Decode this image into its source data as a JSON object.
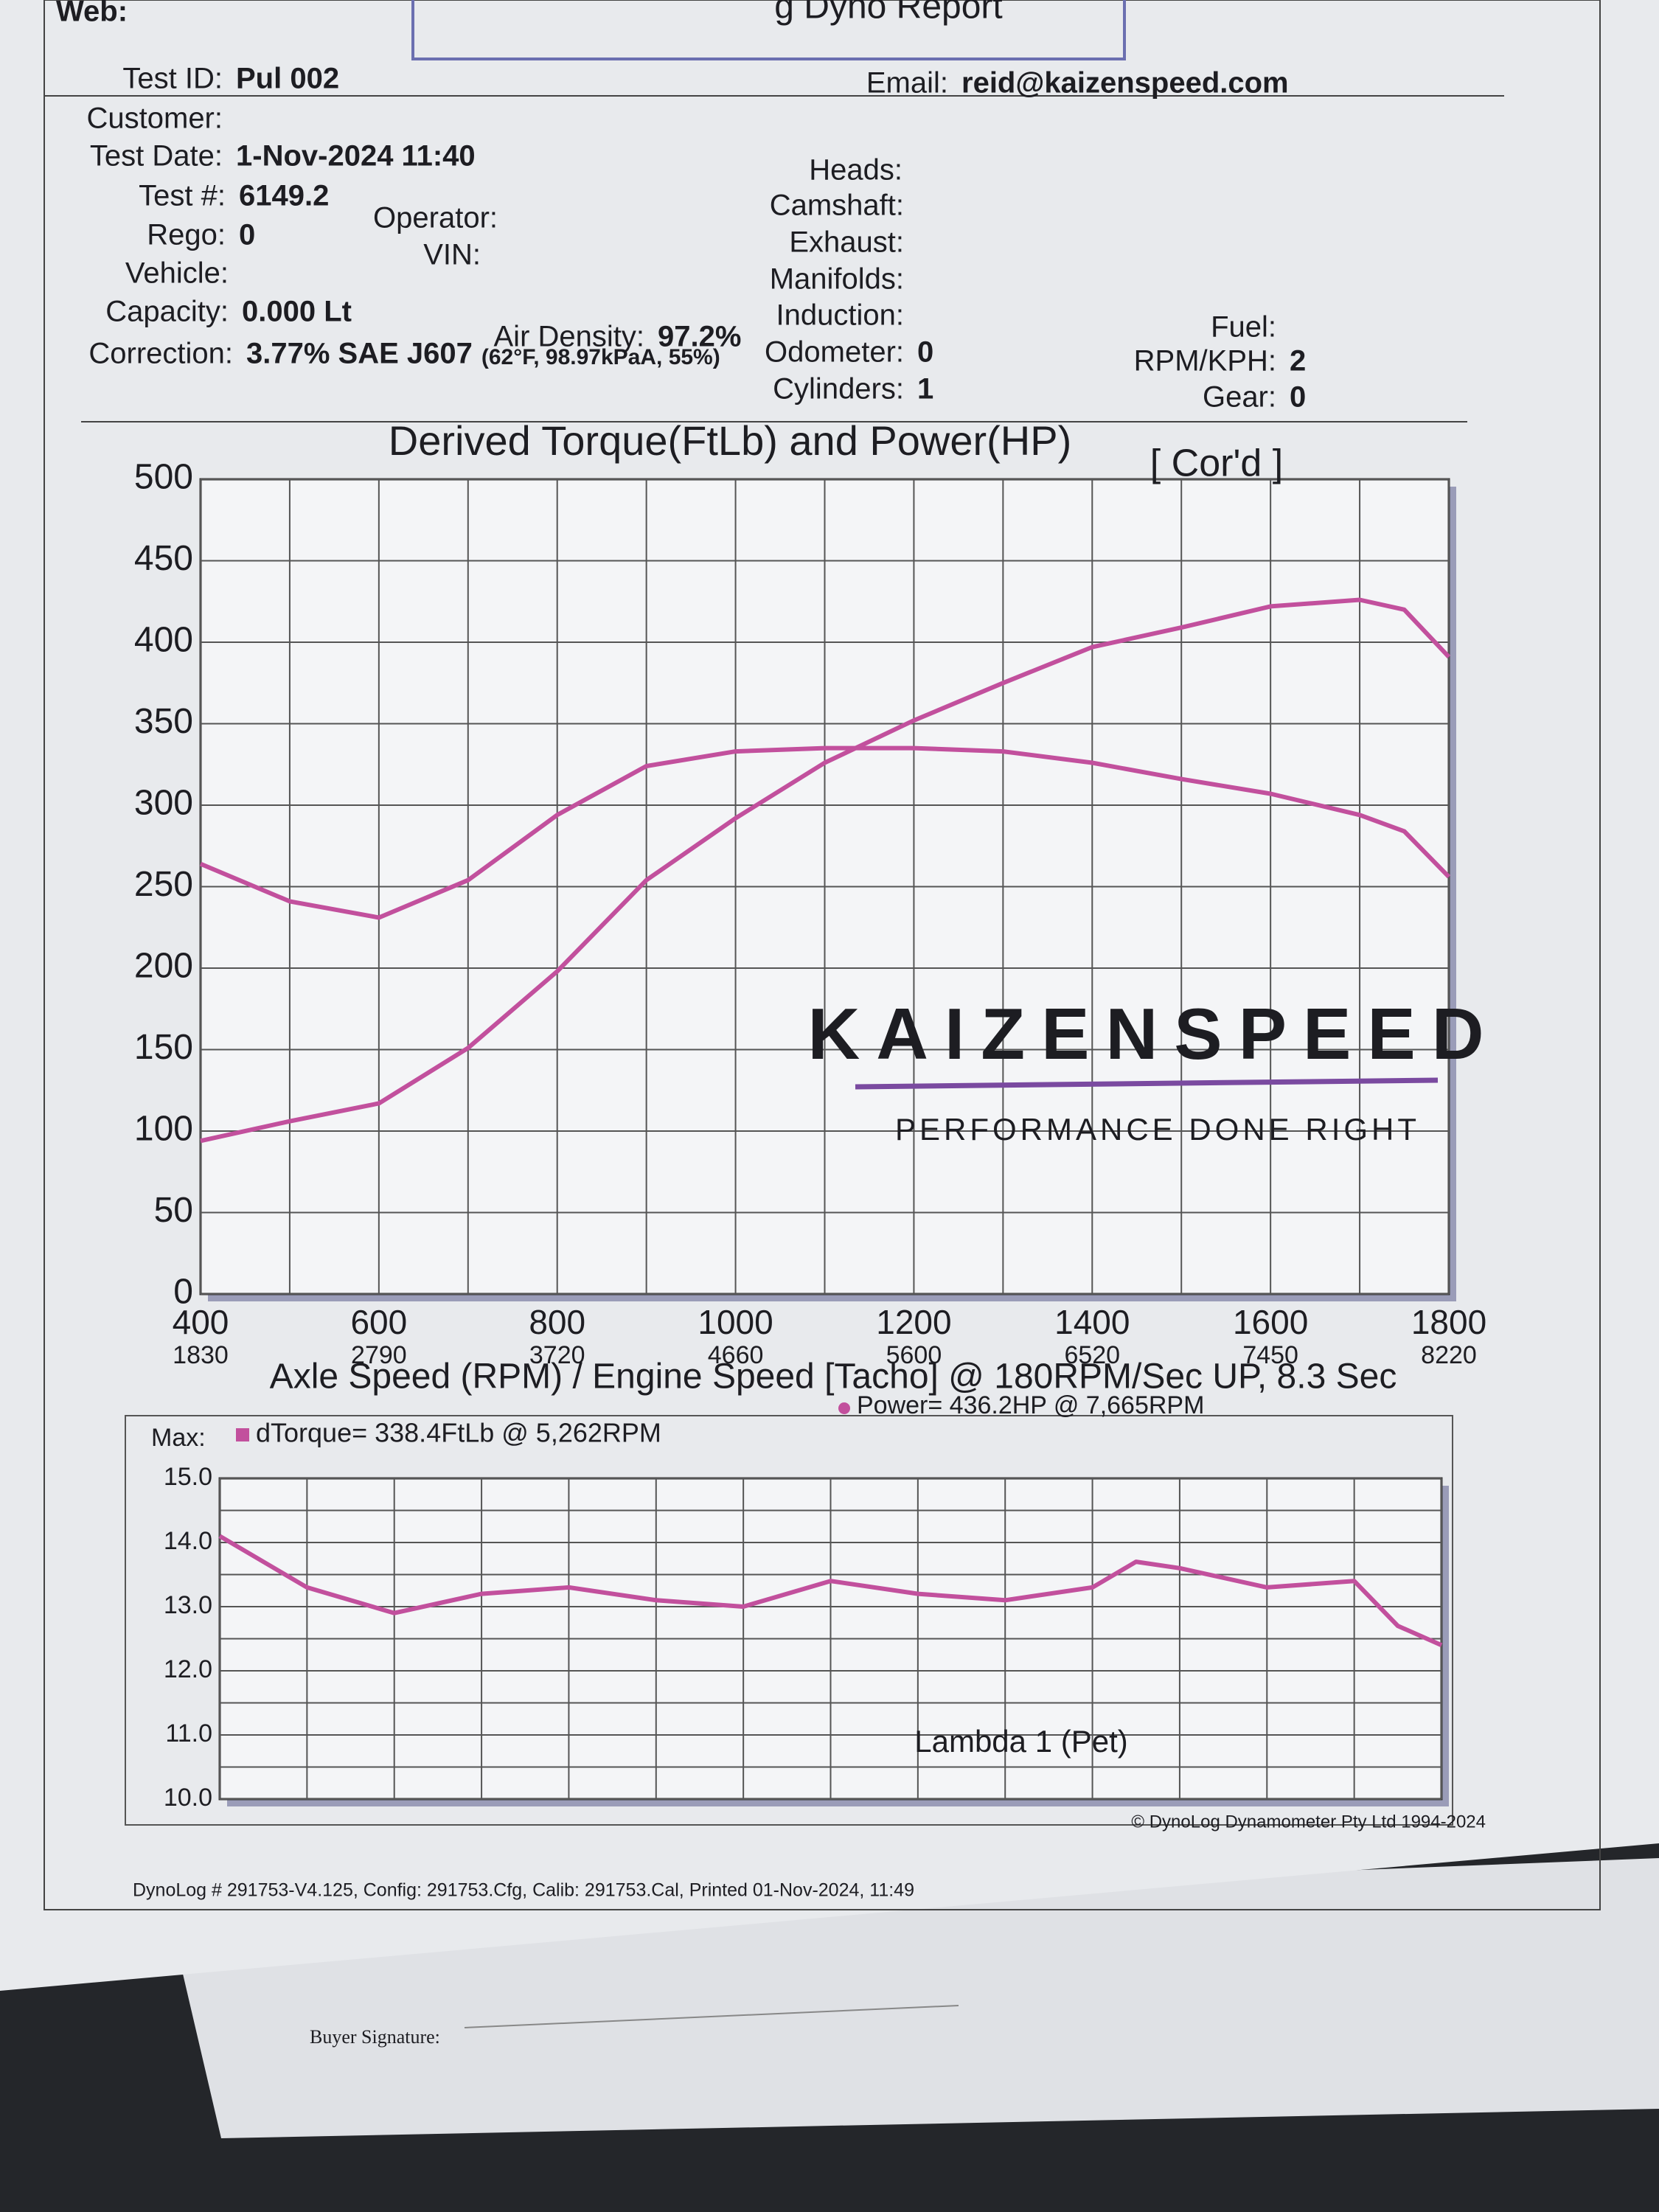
{
  "report_title": "g Dyno Report",
  "web_label": "Web:",
  "header": {
    "fields": [
      {
        "label": "Test ID:",
        "value": "Pul 002"
      },
      {
        "label": "Customer:"
      },
      {
        "label": "Test Date:",
        "value": "1-Nov-2024 11:40"
      },
      {
        "label": "Test #:",
        "value": "6149.2"
      },
      {
        "label": "Operator:"
      },
      {
        "label": "Rego:",
        "value": "0"
      },
      {
        "label": "VIN:"
      },
      {
        "label": "Vehicle:"
      },
      {
        "label": "Capacity:",
        "value": "0.000 Lt"
      },
      {
        "label": "Air Density:",
        "value": "97.2%"
      },
      {
        "label": "Correction:",
        "value": "3.77% SAE J607",
        "note": "(62°F, 98.97kPaA, 55%)"
      },
      {
        "label": "Email:",
        "value": "reid@kaizenspeed.com"
      },
      {
        "label": "Heads:"
      },
      {
        "label": "Camshaft:"
      },
      {
        "label": "Exhaust:"
      },
      {
        "label": "Manifolds:"
      },
      {
        "label": "Induction:"
      },
      {
        "label": "Odometer:",
        "value": "0"
      },
      {
        "label": "Cylinders:",
        "value": "1"
      },
      {
        "label": "Fuel:"
      },
      {
        "label": "RPM/KPH:",
        "value": "2"
      },
      {
        "label": "Gear:",
        "value": "0"
      }
    ]
  },
  "chart_data": [
    {
      "type": "line",
      "title": "Derived Torque(FtLb) and Power(HP)",
      "subtitle": "[ Cor'd ]",
      "xlabel": "Axle Speed (RPM) / Engine Speed [Tacho] @ 180RPM/Sec UP, 8.3 Sec",
      "annotations": [
        "Max:",
        "dTorque= 338.4FtLb @ 5,262RPM",
        "Power= 436.2HP @ 7,665RPM"
      ],
      "watermark": [
        "KAIZENSPEED",
        "PERFORMANCE DONE RIGHT"
      ],
      "x": [
        400,
        500,
        600,
        700,
        800,
        900,
        1000,
        1100,
        1200,
        1300,
        1400,
        1500,
        1600,
        1700,
        1750,
        1800
      ],
      "series": [
        {
          "color": "#c2509d",
          "values": [
            94,
            106,
            117,
            151,
            198,
            254,
            292,
            326,
            352,
            375,
            397,
            409,
            422,
            426,
            420,
            391
          ]
        },
        {
          "color": "#c2509d",
          "values": [
            264,
            241,
            231,
            254,
            294,
            324,
            333,
            335,
            335,
            333,
            326,
            316,
            307,
            294,
            284,
            256
          ]
        }
      ],
      "xlim": [
        400,
        1800
      ],
      "xticks": [
        400,
        600,
        800,
        1000,
        1200,
        1400,
        1600,
        1800
      ],
      "x2ticks": [
        1830,
        2790,
        3720,
        4660,
        5600,
        6520,
        7450,
        8220
      ],
      "xgrid": [
        400,
        500,
        600,
        700,
        800,
        900,
        1000,
        1100,
        1200,
        1300,
        1400,
        1500,
        1600,
        1700,
        1800
      ],
      "ylim": [
        0,
        500
      ],
      "yticks": [
        0,
        50,
        100,
        150,
        200,
        250,
        300,
        350,
        400,
        450,
        500
      ],
      "grid": true
    },
    {
      "type": "line",
      "title": "Lambda 1 (Pet)",
      "x": [
        400,
        500,
        600,
        700,
        800,
        900,
        1000,
        1100,
        1200,
        1300,
        1400,
        1450,
        1500,
        1600,
        1700,
        1750,
        1800
      ],
      "series": [
        {
          "color": "#c2509d",
          "values": [
            14.1,
            13.3,
            12.9,
            13.2,
            13.3,
            13.1,
            13.0,
            13.4,
            13.2,
            13.1,
            13.3,
            13.7,
            13.6,
            13.3,
            13.4,
            12.7,
            12.4
          ]
        }
      ],
      "xlim": [
        400,
        1800
      ],
      "xgrid": [
        400,
        500,
        600,
        700,
        800,
        900,
        1000,
        1100,
        1200,
        1300,
        1400,
        1500,
        1600,
        1700,
        1800
      ],
      "ylim": [
        10,
        15
      ],
      "yticks": [
        {
          "value": 10,
          "label": "10.0"
        },
        {
          "value": 11,
          "label": "11.0"
        },
        {
          "value": 12,
          "label": "12.0"
        },
        {
          "value": 13,
          "label": "13.0"
        },
        {
          "value": 14,
          "label": "14.0"
        },
        {
          "value": 15,
          "label": "15.0"
        }
      ],
      "yminor": [
        10.5,
        11.5,
        12.5,
        13.5,
        14.5
      ],
      "grid": true
    }
  ],
  "footer": {
    "left": "DynoLog # 291753-V4.125, Config: 291753.Cfg, Calib: 291753.Cal, Printed 01-Nov-2024, 11:49",
    "right": "© DynoLog Dynamometer Pty Ltd 1994-2024"
  },
  "buyer_signature": "Buyer Signature:"
}
